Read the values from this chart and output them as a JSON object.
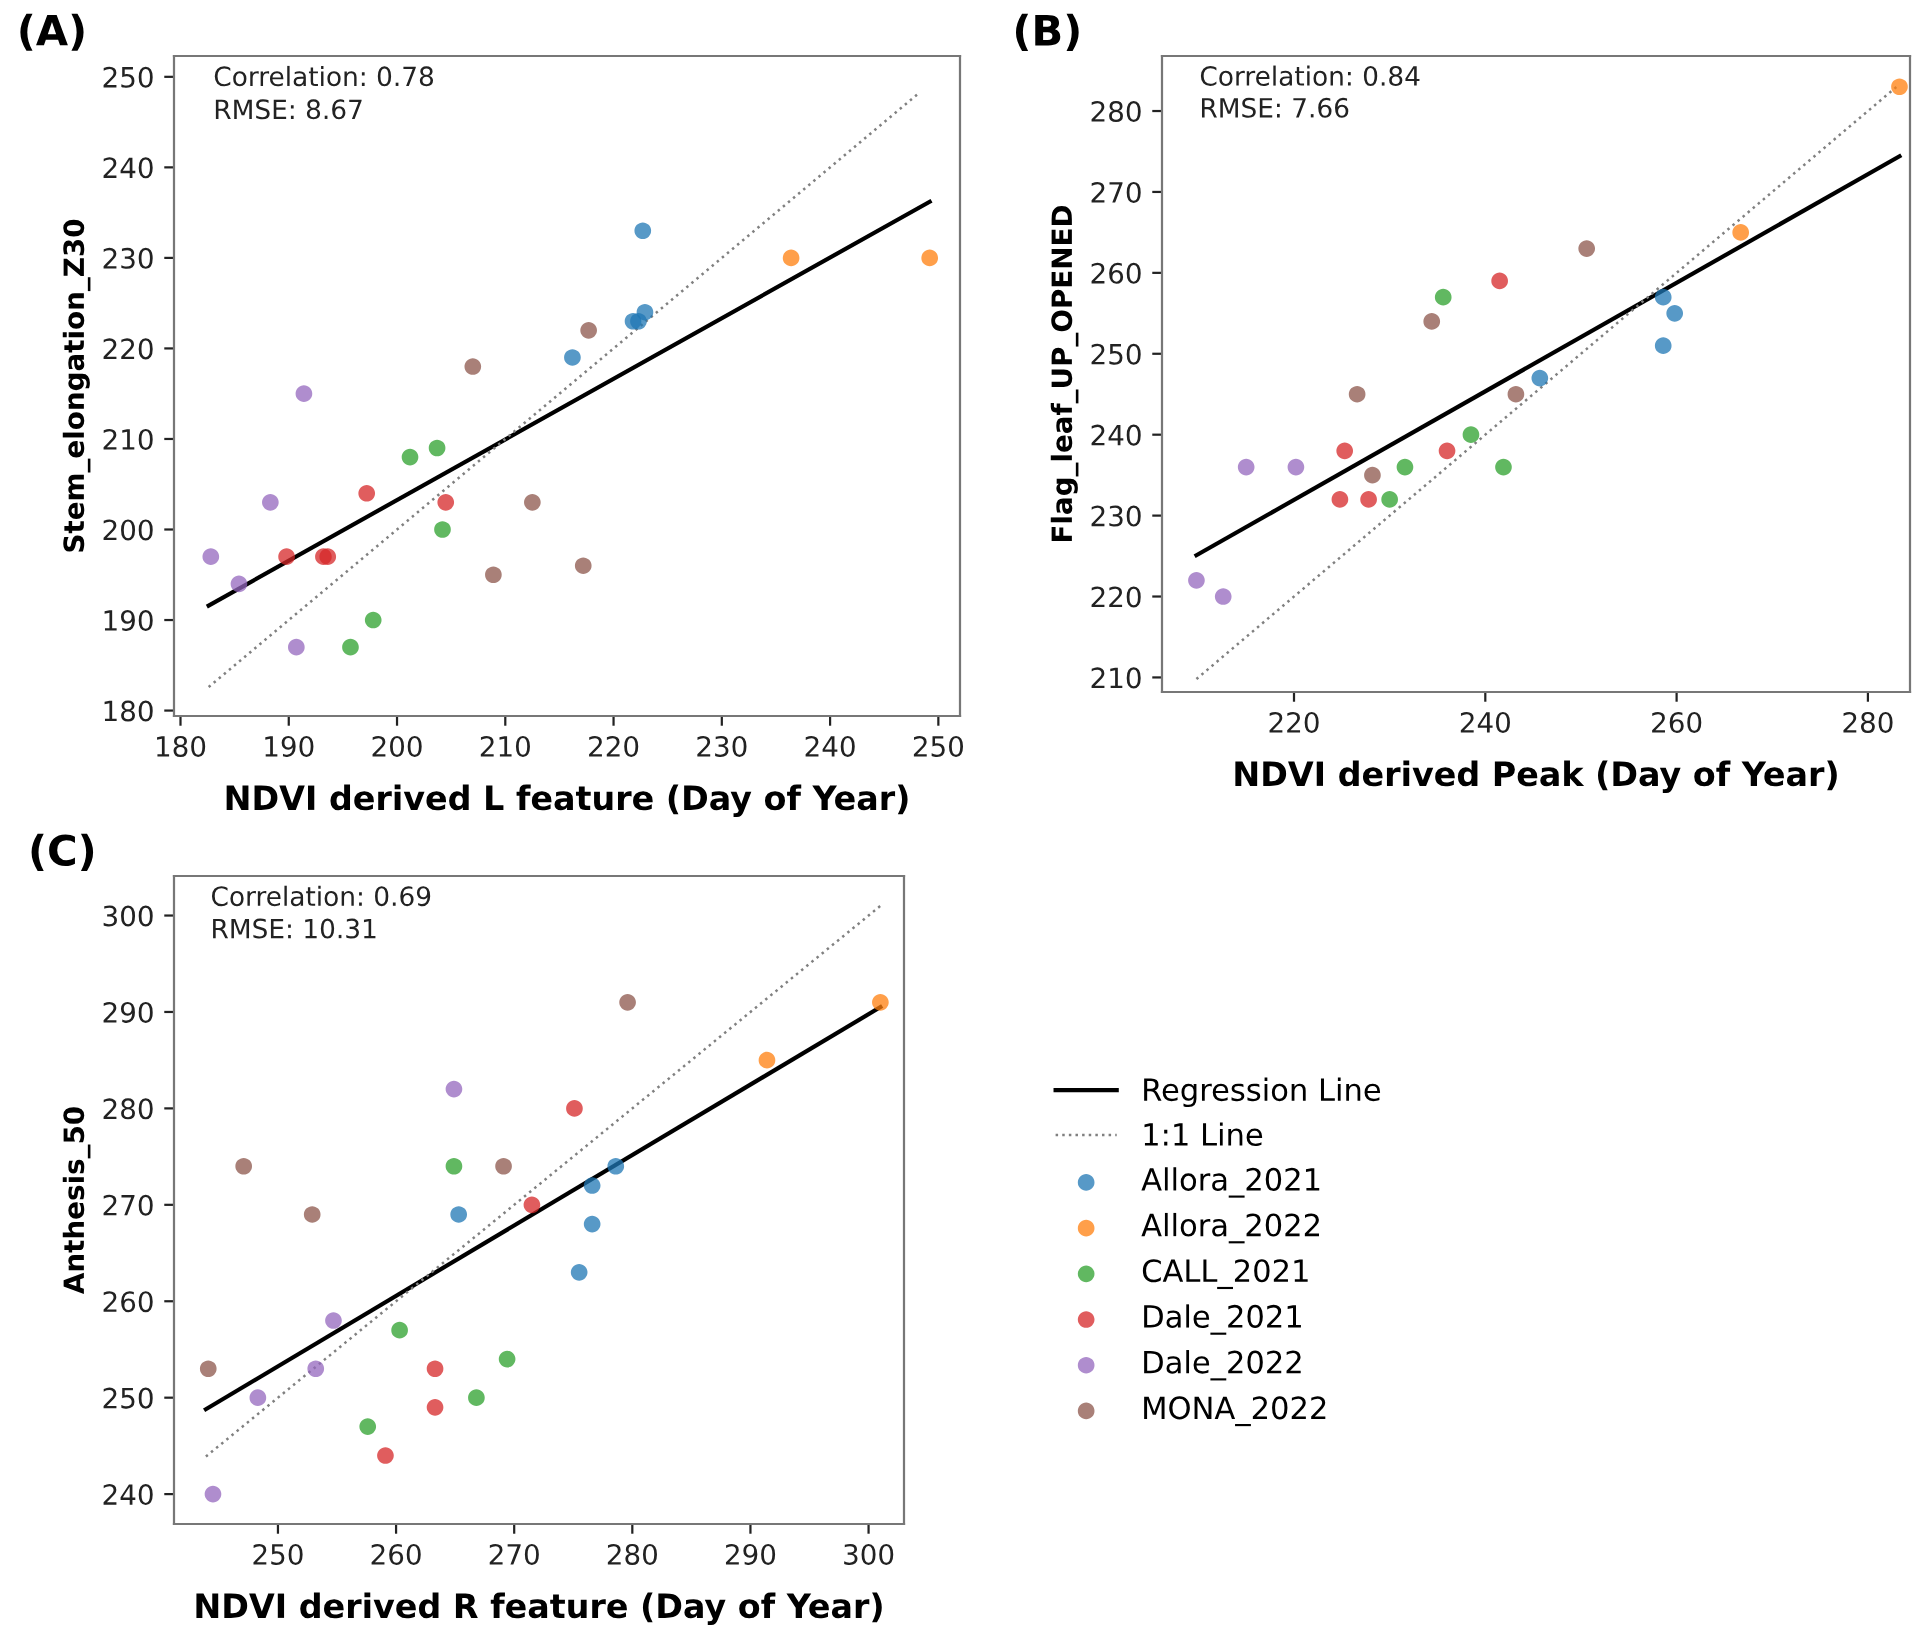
{
  "chart_data": [
    {
      "type": "scatter",
      "title": "(A)",
      "xlabel": "NDVI derived L feature (Day of Year)",
      "ylabel": "Stem_elongation_Z30",
      "annotations": [
        "Correlation: 0.78",
        "RMSE: 8.67"
      ],
      "xlim": [
        179.4,
        252
      ],
      "ylim": [
        179.4,
        252.3
      ],
      "xticks": [
        180,
        190,
        200,
        210,
        220,
        230,
        240,
        250
      ],
      "yticks": [
        180,
        190,
        200,
        210,
        220,
        230,
        240,
        250
      ],
      "series": [
        {
          "type": "line",
          "line_style": "solid",
          "marker": "none",
          "color": "#000000",
          "x": [
            182.6,
            249.2
          ],
          "values": [
            191.6,
            236.2
          ]
        },
        {
          "type": "line",
          "line_style": "dotted",
          "marker": "none",
          "color": "#808080",
          "x": [
            182.6,
            248.3
          ],
          "values": [
            182.6,
            248.3
          ]
        },
        {
          "type": "scatter",
          "marker": "circle",
          "color": "#1f77b4",
          "x": [
            222.7,
            221.8,
            222.3,
            222.9,
            216.2
          ],
          "values": [
            233,
            223,
            223,
            224,
            219
          ]
        },
        {
          "type": "scatter",
          "marker": "circle",
          "color": "#ff7f0e",
          "x": [
            236.4,
            249.2
          ],
          "values": [
            230,
            230
          ]
        },
        {
          "type": "scatter",
          "marker": "circle",
          "color": "#2ca02c",
          "x": [
            201.2,
            203.7,
            204.2,
            197.8,
            195.7
          ],
          "values": [
            208,
            209,
            200,
            190,
            187
          ]
        },
        {
          "type": "scatter",
          "marker": "circle",
          "color": "#d62728",
          "x": [
            197.2,
            204.5,
            189.8,
            193.2,
            193.6
          ],
          "values": [
            204,
            203,
            197,
            197,
            197
          ]
        },
        {
          "type": "scatter",
          "marker": "circle",
          "color": "#9467bd",
          "x": [
            191.4,
            188.3,
            182.8,
            185.4,
            190.7
          ],
          "values": [
            215,
            203,
            197,
            194,
            187
          ]
        },
        {
          "type": "scatter",
          "marker": "circle",
          "color": "#8c564b",
          "x": [
            217.7,
            207.0,
            212.5,
            208.9,
            217.2
          ],
          "values": [
            222,
            218,
            203,
            195,
            196
          ]
        }
      ]
    },
    {
      "type": "scatter",
      "title": "(B)",
      "xlabel": "NDVI derived Peak (Day of Year)",
      "ylabel": "Flag_leaf_UP_OPENED",
      "annotations": [
        "Correlation: 0.84",
        "RMSE: 7.66"
      ],
      "xlim": [
        206.2,
        284.4
      ],
      "ylim": [
        208.2,
        286.8
      ],
      "xticks": [
        220,
        240,
        260,
        280
      ],
      "yticks": [
        210,
        220,
        230,
        240,
        250,
        260,
        270,
        280
      ],
      "series": [
        {
          "type": "line",
          "line_style": "solid",
          "marker": "none",
          "color": "#000000",
          "x": [
            209.8,
            283.3
          ],
          "values": [
            225.1,
            274.4
          ]
        },
        {
          "type": "line",
          "line_style": "dotted",
          "marker": "none",
          "color": "#808080",
          "x": [
            209.8,
            283.3
          ],
          "values": [
            209.8,
            283.3
          ]
        },
        {
          "type": "scatter",
          "marker": "circle",
          "color": "#1f77b4",
          "x": [
            258.6,
            259.8,
            258.6,
            245.7
          ],
          "values": [
            257,
            255,
            251,
            247
          ]
        },
        {
          "type": "scatter",
          "marker": "circle",
          "color": "#ff7f0e",
          "x": [
            283.3,
            266.7
          ],
          "values": [
            283,
            265
          ]
        },
        {
          "type": "scatter",
          "marker": "circle",
          "color": "#2ca02c",
          "x": [
            235.6,
            238.5,
            231.6,
            241.9,
            230.0
          ],
          "values": [
            257,
            240,
            236,
            236,
            232
          ]
        },
        {
          "type": "scatter",
          "marker": "circle",
          "color": "#d62728",
          "x": [
            241.5,
            225.3,
            236.0,
            224.8,
            227.8
          ],
          "values": [
            259,
            238,
            238,
            232,
            232
          ]
        },
        {
          "type": "scatter",
          "marker": "circle",
          "color": "#9467bd",
          "x": [
            215.0,
            220.2,
            209.8,
            212.6
          ],
          "values": [
            236,
            236,
            222,
            220
          ]
        },
        {
          "type": "scatter",
          "marker": "circle",
          "color": "#8c564b",
          "x": [
            250.6,
            234.4,
            226.6,
            243.2,
            228.2
          ],
          "values": [
            263,
            254,
            245,
            245,
            235
          ]
        }
      ]
    },
    {
      "type": "scatter",
      "title": "(C)",
      "xlabel": "NDVI derived R feature (Day of Year)",
      "ylabel": "Anthesis_50",
      "annotations": [
        "Correlation: 0.69",
        "RMSE: 10.31"
      ],
      "xlim": [
        241.2,
        303
      ],
      "ylim": [
        236.9,
        304.1
      ],
      "xticks": [
        250,
        260,
        270,
        280,
        290,
        300
      ],
      "yticks": [
        240,
        250,
        260,
        270,
        280,
        290,
        300
      ],
      "legend": "right",
      "series": [
        {
          "name": "Regression Line",
          "type": "line",
          "line_style": "solid",
          "marker": "none",
          "color": "#000000",
          "x": [
            243.9,
            301
          ],
          "values": [
            248.8,
            290.5
          ]
        },
        {
          "name": "1:1 Line",
          "type": "line",
          "line_style": "dotted",
          "marker": "none",
          "color": "#808080",
          "x": [
            243.9,
            301
          ],
          "values": [
            243.9,
            301
          ]
        },
        {
          "name": "Allora_2021",
          "type": "scatter",
          "marker": "circle",
          "color": "#1f77b4",
          "x": [
            265.3,
            276.6,
            276.6,
            278.6,
            275.5
          ],
          "values": [
            269,
            272,
            268,
            274,
            263
          ]
        },
        {
          "name": "Allora_2022",
          "type": "scatter",
          "marker": "circle",
          "color": "#ff7f0e",
          "x": [
            291.4,
            301
          ],
          "values": [
            285,
            291
          ]
        },
        {
          "name": "CALL_2021",
          "type": "scatter",
          "marker": "circle",
          "color": "#2ca02c",
          "x": [
            264.9,
            260.3,
            269.4,
            266.8,
            257.6
          ],
          "values": [
            274,
            257,
            254,
            250,
            247
          ]
        },
        {
          "name": "Dale_2021",
          "type": "scatter",
          "marker": "circle",
          "color": "#d62728",
          "x": [
            275.1,
            271.5,
            263.3,
            263.3,
            259.1
          ],
          "values": [
            280,
            270,
            253,
            249,
            244
          ]
        },
        {
          "name": "Dale_2022",
          "type": "scatter",
          "marker": "circle",
          "color": "#9467bd",
          "x": [
            264.9,
            254.7,
            253.2,
            248.3,
            244.5
          ],
          "values": [
            282,
            258,
            253,
            250,
            240
          ]
        },
        {
          "name": "MONA_2022",
          "type": "scatter",
          "marker": "circle",
          "color": "#8c564b",
          "x": [
            279.6,
            247.1,
            252.9,
            269.1,
            244.1
          ],
          "values": [
            291,
            274,
            269,
            274,
            253
          ]
        }
      ]
    }
  ]
}
